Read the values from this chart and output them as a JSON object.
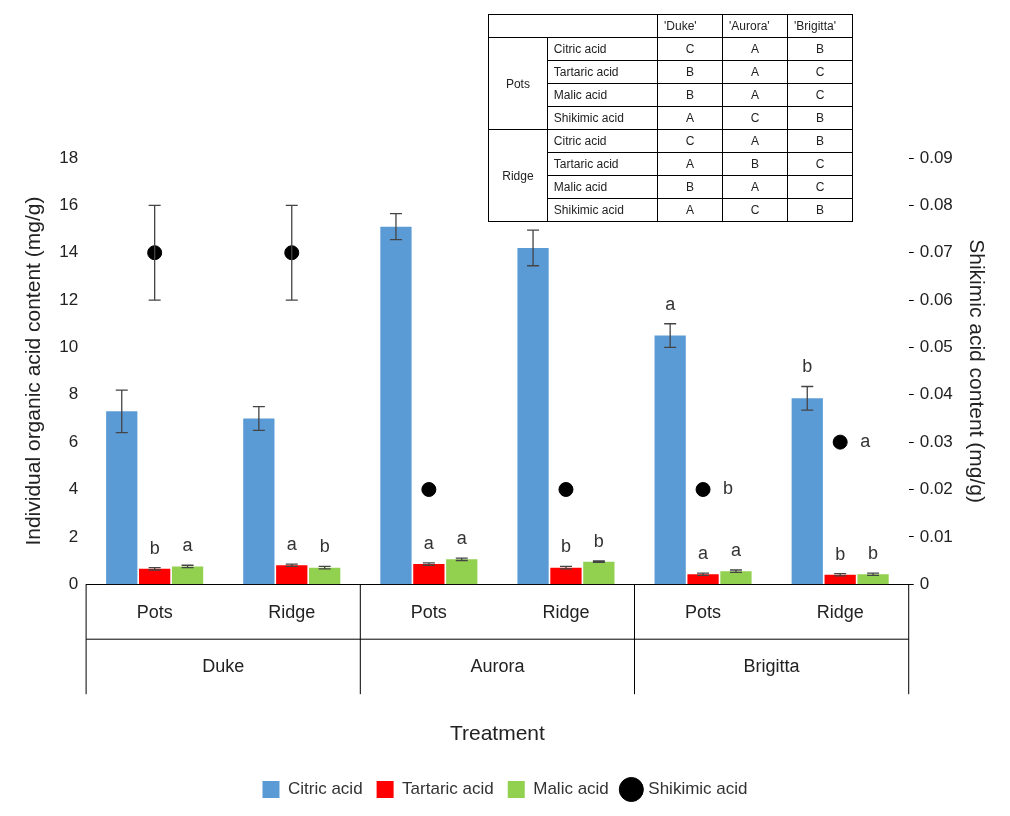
{
  "chart_data": [
    {
      "type": "bar",
      "xlabel": "Treatment",
      "ylabel": "Individual organic acid content (mg/g)",
      "y2label": "Shikimic acid content (mg/g)",
      "categories": [
        "Pots",
        "Ridge",
        "Pots",
        "Ridge",
        "Pots",
        "Ridge"
      ],
      "annotations": [
        "Duke",
        "Aurora",
        "Brigitta"
      ],
      "series": [
        {
          "name": "Citric acid",
          "color": "#5b9bd5",
          "values": [
            7.3,
            7.0,
            15.1,
            14.2,
            10.5,
            7.85
          ],
          "errors": [
            0.9,
            0.5,
            0.55,
            0.75,
            0.5,
            0.5
          ],
          "value_labels": [
            null,
            null,
            null,
            null,
            "a",
            "b"
          ]
        },
        {
          "name": "Tartaric acid",
          "color": "#ff0000",
          "values": [
            0.65,
            0.8,
            0.85,
            0.7,
            0.42,
            0.4
          ],
          "errors": [
            0.05,
            0.05,
            0.05,
            0.05,
            0.05,
            0.05
          ],
          "value_labels": [
            "b",
            "a",
            "a",
            "b",
            "a",
            "b"
          ]
        },
        {
          "name": "Malic acid",
          "color": "#92d050",
          "values": [
            0.75,
            0.7,
            1.05,
            0.95,
            0.55,
            0.42
          ],
          "errors": [
            0.05,
            0.05,
            0.05,
            0.03,
            0.05,
            0.05
          ],
          "value_labels": [
            "a",
            "b",
            "a",
            "b",
            "a",
            "b"
          ]
        },
        {
          "name": "Shikimic acid",
          "type": "scatter",
          "axis": "y2",
          "marker": "circle",
          "color": "#000000",
          "values": [
            0.07,
            0.07,
            0.02,
            0.02,
            0.02,
            0.03
          ],
          "errors": [
            0.01,
            0.01,
            null,
            null,
            null,
            null
          ],
          "value_labels": [
            null,
            null,
            null,
            null,
            "b",
            "a"
          ]
        }
      ],
      "ylim": [
        0,
        18
      ],
      "yticks": [
        0,
        2,
        4,
        6,
        8,
        10,
        12,
        14,
        16,
        18
      ],
      "y2lim": [
        0,
        0.09
      ],
      "y2ticks": [
        0,
        0.01,
        0.02,
        0.03,
        0.04,
        0.05,
        0.06,
        0.07,
        0.08,
        0.09
      ],
      "grid": false,
      "legend": "bottom"
    },
    {
      "type": "other",
      "categories": [
        "'Duke'",
        "'Aurora'",
        "'Brigitta'"
      ],
      "y_categories": [
        "Citric acid",
        "Tartaric acid",
        "Malic acid",
        "Shikimic acid",
        "Citric acid",
        "Tartaric acid",
        "Malic acid",
        "Shikimic acid"
      ],
      "annotations": [
        "Pots",
        "Ridge"
      ],
      "cell_labels": [
        [
          "C",
          "A",
          "B"
        ],
        [
          "B",
          "A",
          "C"
        ],
        [
          "B",
          "A",
          "C"
        ],
        [
          "A",
          "C",
          "B"
        ],
        [
          "C",
          "A",
          "B"
        ],
        [
          "A",
          "B",
          "C"
        ],
        [
          "B",
          "A",
          "C"
        ],
        [
          "A",
          "C",
          "B"
        ]
      ]
    }
  ]
}
